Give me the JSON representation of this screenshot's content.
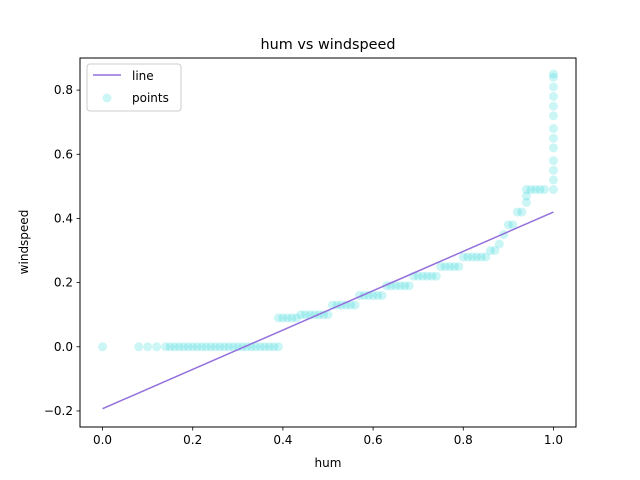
{
  "chart_data": {
    "type": "scatter",
    "title": "hum vs windspeed",
    "xlabel": "hum",
    "ylabel": "windspeed",
    "xlim": [
      -0.05,
      1.05
    ],
    "ylim": [
      -0.25,
      0.9
    ],
    "x_ticks": [
      0.0,
      0.2,
      0.4,
      0.6,
      0.8,
      1.0
    ],
    "x_tick_labels": [
      "0.0",
      "0.2",
      "0.4",
      "0.6",
      "0.8",
      "1.0"
    ],
    "y_ticks": [
      -0.2,
      0.0,
      0.2,
      0.4,
      0.6,
      0.8
    ],
    "y_tick_labels": [
      "−0.2",
      "0.0",
      "0.2",
      "0.4",
      "0.6",
      "0.8"
    ],
    "grid": false,
    "legend": {
      "position": "top-left",
      "entries": [
        {
          "label": "line",
          "kind": "line",
          "color": "#9370db"
        },
        {
          "label": "points",
          "kind": "marker",
          "color": "#00ced1"
        }
      ]
    },
    "series": [
      {
        "name": "line",
        "kind": "line",
        "color": "#9370db",
        "x": [
          0.0,
          1.0
        ],
        "y": [
          -0.193,
          0.42
        ]
      },
      {
        "name": "points",
        "kind": "scatter",
        "color": "#00ced1",
        "alpha": 0.2,
        "x": [
          0.0,
          0.08,
          0.1,
          0.12,
          0.14,
          0.15,
          0.16,
          0.17,
          0.18,
          0.19,
          0.2,
          0.21,
          0.22,
          0.23,
          0.24,
          0.25,
          0.26,
          0.27,
          0.28,
          0.29,
          0.3,
          0.31,
          0.32,
          0.33,
          0.34,
          0.35,
          0.36,
          0.37,
          0.38,
          0.39,
          0.39,
          0.4,
          0.41,
          0.42,
          0.43,
          0.44,
          0.45,
          0.46,
          0.47,
          0.48,
          0.49,
          0.5,
          0.51,
          0.52,
          0.53,
          0.54,
          0.55,
          0.56,
          0.57,
          0.58,
          0.59,
          0.6,
          0.61,
          0.62,
          0.63,
          0.64,
          0.65,
          0.66,
          0.67,
          0.68,
          0.69,
          0.7,
          0.71,
          0.72,
          0.73,
          0.74,
          0.75,
          0.76,
          0.77,
          0.78,
          0.79,
          0.8,
          0.81,
          0.82,
          0.83,
          0.84,
          0.85,
          0.86,
          0.87,
          0.88,
          0.89,
          0.9,
          0.91,
          0.92,
          0.93,
          0.94,
          0.94,
          0.94,
          0.95,
          0.96,
          0.97,
          0.98,
          1.0,
          1.0,
          1.0,
          1.0,
          1.0,
          1.0,
          1.0,
          1.0,
          1.0,
          1.0,
          1.0,
          1.0,
          1.0
        ],
        "y": [
          0.0,
          0.0,
          0.0,
          0.0,
          0.0,
          0.0,
          0.0,
          0.0,
          0.0,
          0.0,
          0.0,
          0.0,
          0.0,
          0.0,
          0.0,
          0.0,
          0.0,
          0.0,
          0.0,
          0.0,
          0.0,
          0.0,
          0.0,
          0.0,
          0.0,
          0.0,
          0.0,
          0.0,
          0.0,
          0.0,
          0.09,
          0.09,
          0.09,
          0.09,
          0.09,
          0.1,
          0.1,
          0.1,
          0.1,
          0.1,
          0.1,
          0.1,
          0.13,
          0.13,
          0.13,
          0.13,
          0.13,
          0.13,
          0.16,
          0.16,
          0.16,
          0.16,
          0.16,
          0.16,
          0.19,
          0.19,
          0.19,
          0.19,
          0.19,
          0.19,
          0.22,
          0.22,
          0.22,
          0.22,
          0.22,
          0.22,
          0.25,
          0.25,
          0.25,
          0.25,
          0.25,
          0.28,
          0.28,
          0.28,
          0.28,
          0.28,
          0.28,
          0.3,
          0.3,
          0.32,
          0.35,
          0.38,
          0.38,
          0.42,
          0.42,
          0.45,
          0.47,
          0.49,
          0.49,
          0.49,
          0.49,
          0.49,
          0.49,
          0.52,
          0.55,
          0.58,
          0.62,
          0.65,
          0.68,
          0.72,
          0.75,
          0.78,
          0.81,
          0.84,
          0.85
        ]
      }
    ]
  }
}
